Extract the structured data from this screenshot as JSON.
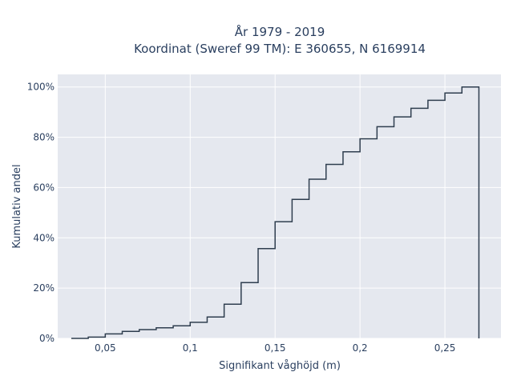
{
  "colors": {
    "plot_background": "#e5e8ef",
    "paper_background": "#ffffff",
    "grid": "#ffffff",
    "line": "#2f3e4f",
    "text": "#2a3f5f"
  },
  "chart_data": {
    "type": "line",
    "line_shape": "step (cumulative distribution)",
    "title_lines": [
      "År 1979 - 2019",
      "Koordinat (Sweref 99 TM): E 360655, N 6169914"
    ],
    "xlabel": "Signifikant våghöjd (m)",
    "ylabel": "Kumulativ andel",
    "xlim": [
      0.022,
      0.283
    ],
    "ylim": [
      0,
      1.05
    ],
    "x_ticks": [
      0.05,
      0.1,
      0.15,
      0.2,
      0.25
    ],
    "x_tick_labels": [
      "0,05",
      "0,1",
      "0,15",
      "0,2",
      "0,25"
    ],
    "y_ticks": [
      0,
      0.2,
      0.4,
      0.6,
      0.8,
      1.0
    ],
    "y_tick_labels": [
      "0%",
      "20%",
      "40%",
      "60%",
      "80%",
      "100%"
    ],
    "grid": true,
    "legend": false,
    "series": [
      {
        "x": [
          0.03,
          0.04,
          0.05,
          0.06,
          0.07,
          0.08,
          0.09,
          0.1,
          0.11,
          0.12,
          0.13,
          0.14,
          0.15,
          0.16,
          0.17,
          0.18,
          0.19,
          0.2,
          0.21,
          0.22,
          0.23,
          0.24,
          0.25,
          0.26,
          0.27
        ],
        "y": [
          0.0,
          0.005,
          0.018,
          0.028,
          0.035,
          0.042,
          0.05,
          0.064,
          0.085,
          0.136,
          0.222,
          0.357,
          0.464,
          0.553,
          0.633,
          0.692,
          0.742,
          0.794,
          0.842,
          0.881,
          0.915,
          0.947,
          0.976,
          1.0,
          0.0
        ]
      }
    ]
  }
}
